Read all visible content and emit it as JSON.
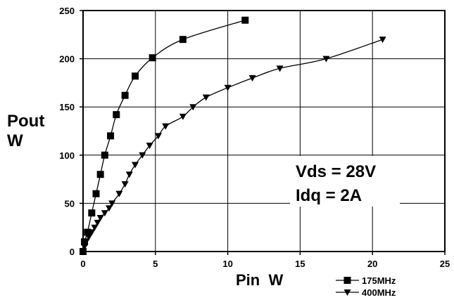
{
  "chart_data": {
    "type": "scatter",
    "xlim": [
      0,
      25
    ],
    "ylim": [
      0,
      250
    ],
    "x_ticks": [
      "0",
      "5",
      "10",
      "15",
      "20",
      "25"
    ],
    "y_ticks": [
      "0",
      "50",
      "100",
      "150",
      "200",
      "250"
    ],
    "ylabel_main": "Pout",
    "ylabel_unit": "W",
    "xlabel": "Pin  W",
    "grid": true,
    "annotations": [
      "Vds = 28V",
      "Idq = 2A"
    ],
    "legend_position": "bottom-right",
    "series": [
      {
        "name": "175MHz",
        "marker": "square",
        "x": [
          0.0,
          0.1,
          0.3,
          0.6,
          0.9,
          1.2,
          1.5,
          1.9,
          2.3,
          2.9,
          3.6,
          4.8,
          6.9,
          11.2
        ],
        "y": [
          0,
          10,
          20,
          40,
          60,
          80,
          100,
          120,
          142,
          162,
          182,
          201,
          220,
          240
        ]
      },
      {
        "name": "400MHz",
        "marker": "triangle-down",
        "x": [
          0.0,
          0.1,
          0.2,
          0.4,
          0.6,
          0.8,
          1.0,
          1.2,
          1.5,
          1.8,
          2.0,
          2.5,
          2.9,
          3.2,
          3.6,
          4.1,
          4.6,
          5.2,
          5.7,
          6.9,
          7.6,
          8.5,
          10.0,
          11.7,
          13.6,
          16.8,
          20.7
        ],
        "y": [
          0,
          5,
          10,
          15,
          20,
          25,
          30,
          35,
          40,
          45,
          50,
          60,
          70,
          80,
          90,
          100,
          110,
          120,
          130,
          140,
          150,
          160,
          170,
          180,
          190,
          200,
          220
        ]
      }
    ]
  }
}
